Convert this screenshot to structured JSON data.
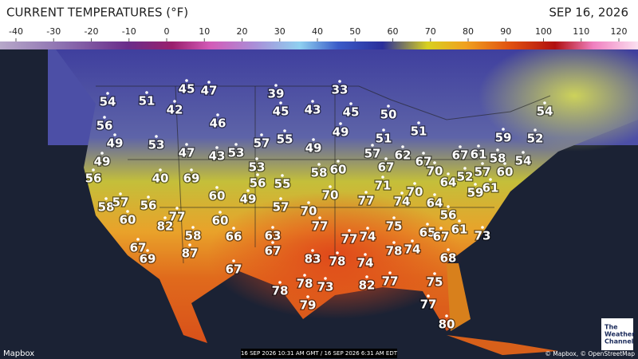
{
  "header": {
    "title": "CURRENT TEMPERATURES (°F)",
    "date": "SEP 16, 2026"
  },
  "scale": {
    "ticks": [
      -40,
      -30,
      -20,
      -10,
      0,
      10,
      20,
      30,
      40,
      50,
      60,
      70,
      80,
      90,
      100,
      110,
      120
    ]
  },
  "temperatures": [
    54,
    51,
    45,
    47,
    42,
    39,
    33,
    45,
    43,
    45,
    50,
    56,
    46,
    49,
    51,
    54,
    49,
    53,
    47,
    43,
    53,
    57,
    55,
    49,
    51,
    59,
    52,
    49,
    57,
    62,
    67,
    67,
    61,
    58,
    54,
    56,
    40,
    69,
    53,
    58,
    60,
    67,
    70,
    52,
    57,
    60,
    56,
    55,
    71,
    64,
    61,
    60,
    49,
    70,
    77,
    74,
    70,
    59,
    58,
    57,
    56,
    57,
    70,
    64,
    60,
    77,
    60,
    56,
    82,
    77,
    75,
    61,
    58,
    66,
    63,
    77,
    74,
    65,
    67,
    73,
    67,
    87,
    67,
    78,
    74,
    69,
    83,
    78,
    74,
    68,
    67,
    78,
    73,
    82,
    77,
    75,
    78,
    79,
    77,
    80
  ],
  "footer": {
    "credit": "Mapbox",
    "timestamp": "16 SEP 2026 10:31 AM GMT / 16 SEP 2026 6:31 AM EDT",
    "attribution": "© Mapbox, © OpenStreetMap",
    "logo": [
      "The",
      "Weather",
      "Channel"
    ]
  }
}
